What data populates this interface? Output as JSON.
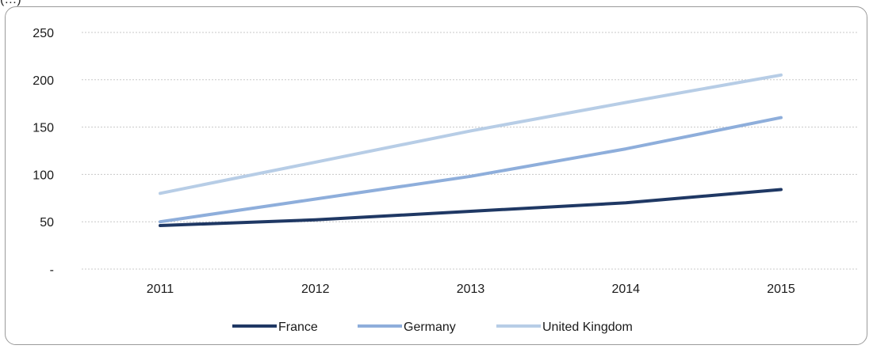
{
  "top_caption": "(…)",
  "chart_data": {
    "type": "line",
    "x": [
      2011,
      2012,
      2013,
      2014,
      2015
    ],
    "categories": [
      "2011",
      "2012",
      "2013",
      "2014",
      "2015"
    ],
    "y_ticks": [
      0,
      50,
      100,
      150,
      200,
      250
    ],
    "y_tick_labels": [
      "-",
      "50",
      "100",
      "150",
      "200",
      "250"
    ],
    "ylim": [
      0,
      250
    ],
    "grid": true,
    "legend_position": "bottom",
    "series": [
      {
        "name": "France",
        "color": "#1f3864",
        "values": [
          46,
          52,
          61,
          70,
          84
        ]
      },
      {
        "name": "Germany",
        "color": "#8eaedb",
        "values": [
          50,
          74,
          98,
          127,
          160
        ]
      },
      {
        "name": "United Kingdom",
        "color": "#b7cde6",
        "values": [
          80,
          113,
          146,
          176,
          205
        ]
      }
    ]
  }
}
